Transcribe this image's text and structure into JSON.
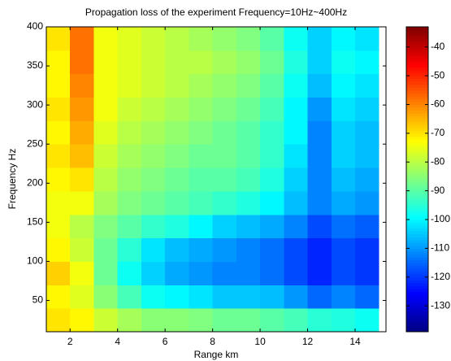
{
  "chart_data": {
    "type": "heatmap",
    "title": "Propagation loss of the experiment    Frequency=10Hz~400Hz",
    "xlabel": "Range km",
    "ylabel": "Frequency Hz",
    "xlim": [
      1,
      15.3
    ],
    "xticks": [
      2,
      4,
      6,
      8,
      10,
      12,
      14
    ],
    "ylim": [
      10,
      400
    ],
    "yticks": [
      50,
      100,
      150,
      200,
      250,
      300,
      350,
      400
    ],
    "colormap": "jet",
    "clim": [
      -139,
      -33
    ],
    "cticks": [
      -40,
      -50,
      -60,
      -70,
      -80,
      -90,
      -100,
      -110,
      -120,
      -130
    ],
    "x": [
      1.5,
      2.5,
      3.5,
      4.5,
      5.5,
      6.5,
      7.5,
      8.5,
      9.5,
      10.5,
      11.5,
      12.5,
      13.5,
      14.5
    ],
    "y": [
      25,
      55,
      85,
      115,
      145,
      175,
      205,
      235,
      265,
      295,
      325,
      355,
      385
    ],
    "z": [
      [
        -70,
        -72,
        -78,
        -82,
        -85,
        -85,
        -86,
        -88,
        -88,
        -90,
        -92,
        -95,
        -96,
        -98
      ],
      [
        -72,
        -76,
        -85,
        -92,
        -98,
        -100,
        -102,
        -105,
        -105,
        -106,
        -110,
        -115,
        -112,
        -115
      ],
      [
        -68,
        -74,
        -88,
        -98,
        -104,
        -108,
        -110,
        -112,
        -112,
        -114,
        -118,
        -122,
        -118,
        -120
      ],
      [
        -72,
        -78,
        -88,
        -95,
        -102,
        -106,
        -108,
        -110,
        -112,
        -114,
        -118,
        -122,
        -118,
        -120
      ],
      [
        -74,
        -80,
        -86,
        -90,
        -94,
        -96,
        -100,
        -104,
        -106,
        -108,
        -112,
        -118,
        -114,
        -116
      ],
      [
        -74,
        -74,
        -82,
        -86,
        -88,
        -90,
        -92,
        -94,
        -96,
        -100,
        -106,
        -112,
        -108,
        -110
      ],
      [
        -72,
        -70,
        -80,
        -84,
        -86,
        -88,
        -90,
        -90,
        -92,
        -96,
        -104,
        -112,
        -106,
        -108
      ],
      [
        -70,
        -66,
        -78,
        -82,
        -84,
        -86,
        -88,
        -88,
        -90,
        -94,
        -102,
        -112,
        -104,
        -106
      ],
      [
        -72,
        -64,
        -76,
        -80,
        -82,
        -84,
        -86,
        -88,
        -90,
        -94,
        -100,
        -112,
        -104,
        -106
      ],
      [
        -70,
        -62,
        -74,
        -78,
        -80,
        -82,
        -84,
        -86,
        -88,
        -92,
        -100,
        -110,
        -102,
        -104
      ],
      [
        -72,
        -60,
        -74,
        -76,
        -78,
        -80,
        -82,
        -84,
        -86,
        -90,
        -98,
        -106,
        -100,
        -102
      ],
      [
        -72,
        -58,
        -74,
        -76,
        -78,
        -80,
        -80,
        -82,
        -84,
        -88,
        -96,
        -104,
        -98,
        -100
      ],
      [
        -70,
        -58,
        -74,
        -76,
        -78,
        -80,
        -82,
        -84,
        -86,
        -90,
        -98,
        -104,
        -100,
        -102
      ]
    ]
  }
}
